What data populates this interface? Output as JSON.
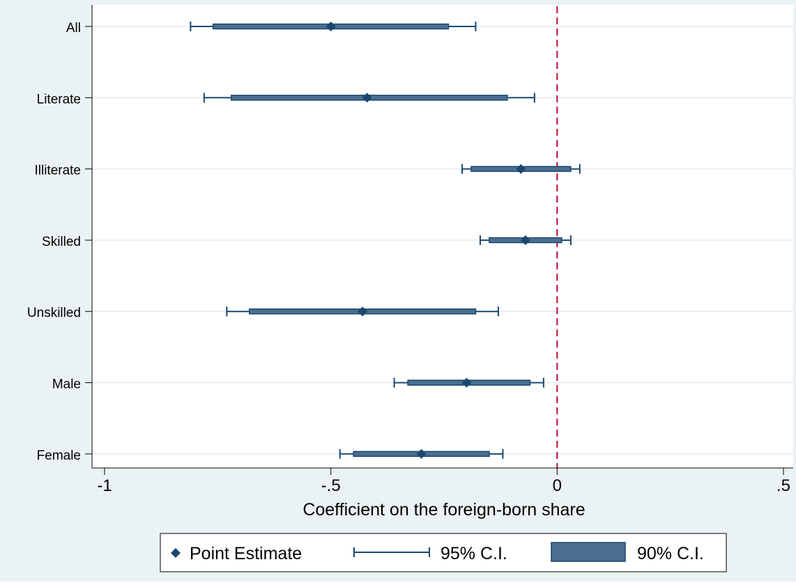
{
  "colors": {
    "outer_background": "#eaf2f3",
    "plot_background": "#ffffff",
    "marker": "#1a476f",
    "ci95": "#1a476f",
    "ci90_fill": "#4a6f8f",
    "zero_line": "#c10534",
    "grid": "#e1ebed"
  },
  "chart_data": {
    "type": "scatter",
    "orientation": "horizontal",
    "title": "",
    "xlabel": "Coefficient on the foreign-born share",
    "ylabel": "",
    "xlim": [
      -1,
      0.5
    ],
    "xticks": [
      -1,
      -0.5,
      0,
      0.5
    ],
    "xtick_labels": [
      "-1",
      "-.5",
      "0",
      ".5"
    ],
    "reference_line": {
      "x": 0,
      "style": "dashed"
    },
    "grid": true,
    "legend_position": "bottom",
    "legend": [
      "Point Estimate",
      "95% C.I.",
      "90% C.I."
    ],
    "categories": [
      "All",
      "Literate",
      "Illiterate",
      "Skilled",
      "Unskilled",
      "Male",
      "Female"
    ],
    "point_estimate": [
      -0.5,
      -0.42,
      -0.08,
      -0.07,
      -0.43,
      -0.2,
      -0.3
    ],
    "ci95": [
      [
        -0.81,
        -0.18
      ],
      [
        -0.78,
        -0.05
      ],
      [
        -0.21,
        0.05
      ],
      [
        -0.17,
        0.03
      ],
      [
        -0.73,
        -0.13
      ],
      [
        -0.36,
        -0.03
      ],
      [
        -0.48,
        -0.12
      ]
    ],
    "ci90": [
      [
        -0.76,
        -0.24
      ],
      [
        -0.72,
        -0.11
      ],
      [
        -0.19,
        0.03
      ],
      [
        -0.15,
        0.01
      ],
      [
        -0.68,
        -0.18
      ],
      [
        -0.33,
        -0.06
      ],
      [
        -0.45,
        -0.15
      ]
    ]
  }
}
